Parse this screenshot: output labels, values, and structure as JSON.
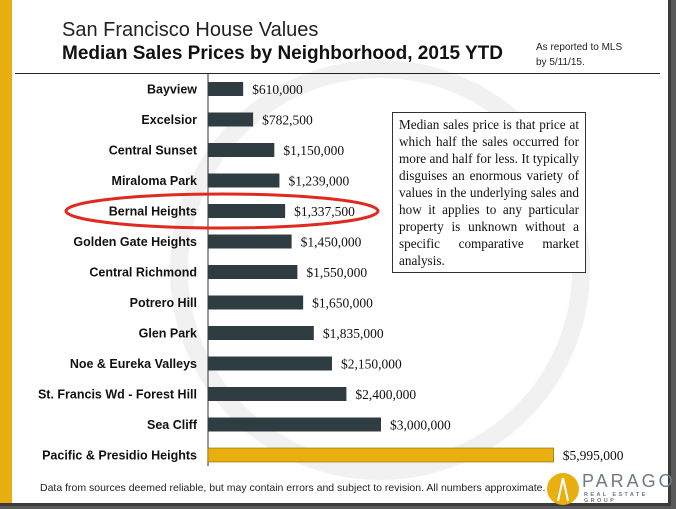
{
  "chart_data": {
    "type": "bar",
    "orientation": "horizontal",
    "title": "San Francisco House Values",
    "subtitle": "Median Sales Prices by Neighborhood, 2015 YTD",
    "note": "As reported to MLS by 5/11/15.",
    "categories": [
      "Bayview",
      "Excelsior",
      "Central Sunset",
      "Miraloma Park",
      "Bernal Heights",
      "Golden Gate Heights",
      "Central Richmond",
      "Potrero Hill",
      "Glen Park",
      "Noe & Eureka Valleys",
      "St. Francis Wd - Forest Hill",
      "Sea Cliff",
      "Pacific & Presidio Heights"
    ],
    "values": [
      610000,
      782500,
      1150000,
      1239000,
      1337500,
      1450000,
      1550000,
      1650000,
      1835000,
      2150000,
      2400000,
      3000000,
      5995000
    ],
    "data_labels": [
      "$610,000",
      "$782,500",
      "$1,150,000",
      "$1,239,000",
      "$1,337,500",
      "$1,450,000",
      "$1,550,000",
      "$1,650,000",
      "$1,835,000",
      "$2,150,000",
      "$2,400,000",
      "$3,000,000",
      "$5,995,000"
    ],
    "colors": {
      "default": "#2f3d42",
      "highlight": "#e9ae0f",
      "circle": "#e0291f"
    },
    "highlighted_bar": "Pacific & Presidio Heights",
    "circled_category": "Bernal Heights",
    "annotation": "Median sales price is that price at which half the sales occurred for more and half for less. It typically disguises an enormous variety of values in the underlying sales and how it applies to any particular property is unknown without a specific comparative market analysis.",
    "grid": false
  },
  "footer": "Data from sources deemed reliable, but may contain errors and subject to revision. All numbers approximate.",
  "logo": {
    "name": "PARAGON",
    "sub": "REAL ESTATE GROUP"
  }
}
